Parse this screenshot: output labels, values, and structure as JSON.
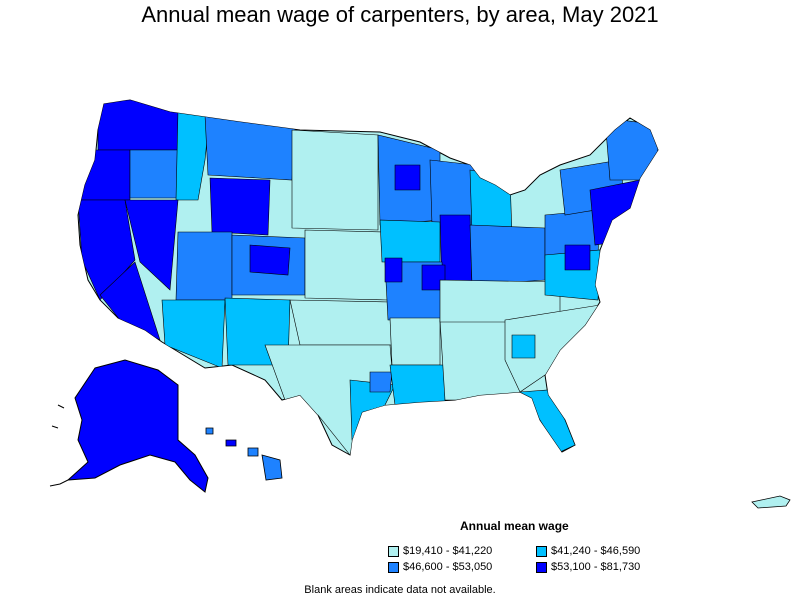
{
  "title": "Annual mean wage of carpenters, by area, May 2021",
  "legend": {
    "title": "Annual mean wage",
    "items": [
      {
        "label": "$19,410 - $41,220",
        "color": "#b0f0f0"
      },
      {
        "label": "$41,240 - $46,590",
        "color": "#00c0ff"
      },
      {
        "label": "$46,600 - $53,050",
        "color": "#1e82ff"
      },
      {
        "label": "$53,100 - $81,730",
        "color": "#0000ff"
      }
    ]
  },
  "note": "Blank areas indicate data not available.",
  "colors": {
    "c1": "#b0f0f0",
    "c2": "#00c0ff",
    "c3": "#1e82ff",
    "c4": "#0000ff",
    "border": "#000000"
  }
}
